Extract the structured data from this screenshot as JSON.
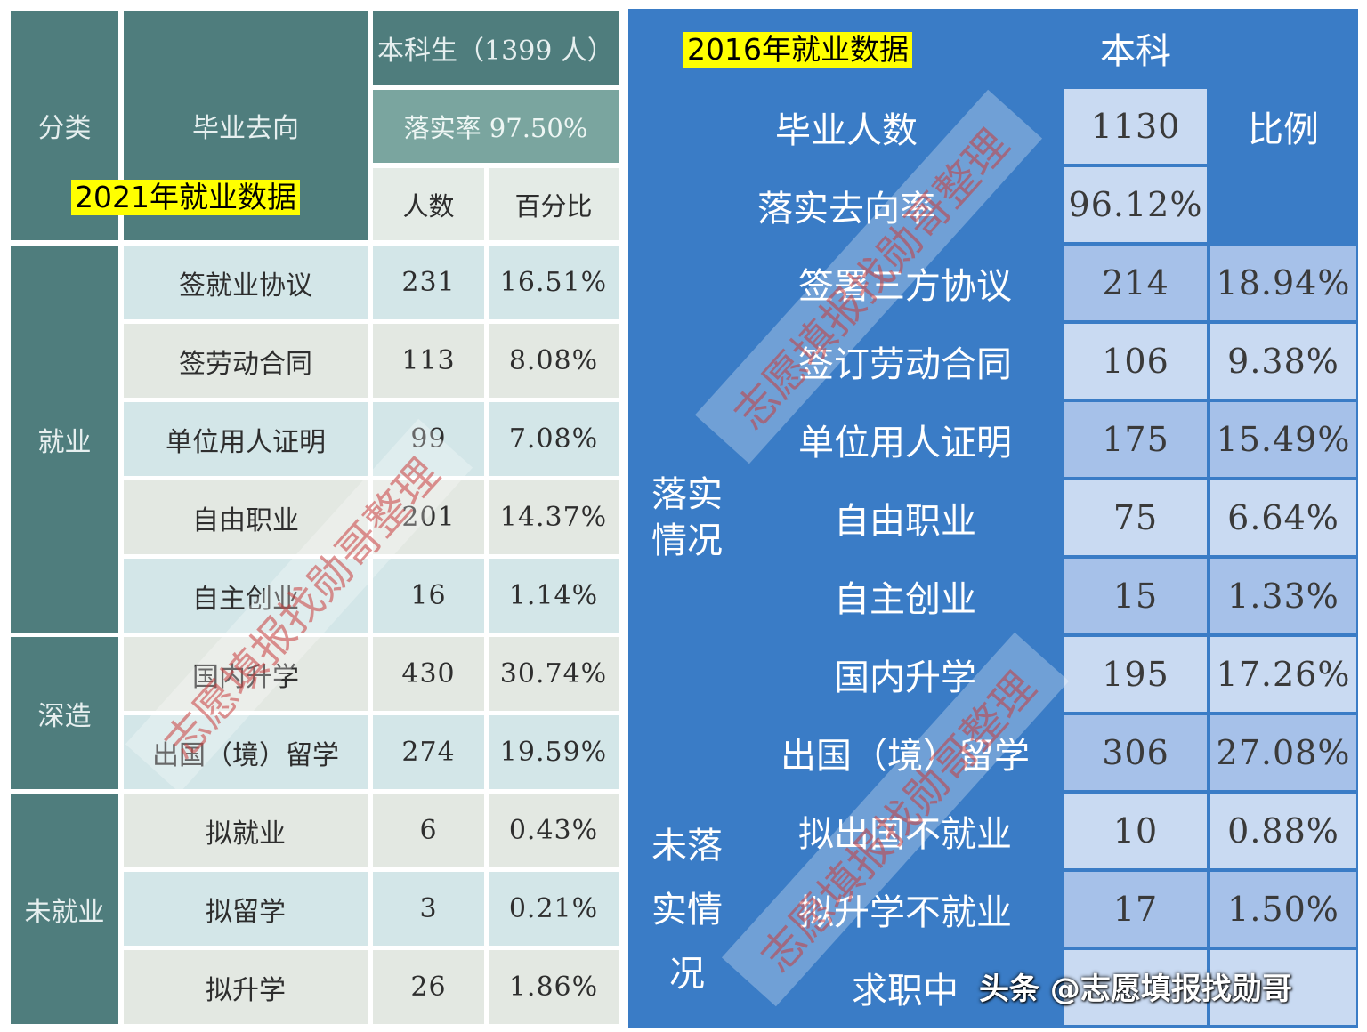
{
  "left": {
    "title_highlight": "2021年就业数据",
    "header": {
      "category": "分类",
      "direction": "毕业去向",
      "group": "本科生（1399 人）",
      "rate": "落实率 97.50%",
      "col_count": "人数",
      "col_pct": "百分比"
    },
    "categories": [
      {
        "name": "就业"
      },
      {
        "name": "深造"
      },
      {
        "name": "未就业"
      }
    ],
    "rows": [
      {
        "label": "签就业协议",
        "count": "231",
        "pct": "16.51%"
      },
      {
        "label": "签劳动合同",
        "count": "113",
        "pct": "8.08%"
      },
      {
        "label": "单位用人证明",
        "count": "99",
        "pct": "7.08%"
      },
      {
        "label": "自由职业",
        "count": "201",
        "pct": "14.37%"
      },
      {
        "label": "自主创业",
        "count": "16",
        "pct": "1.14%"
      },
      {
        "label": "国内升学",
        "count": "430",
        "pct": "30.74%"
      },
      {
        "label": "出国（境）留学",
        "count": "274",
        "pct": "19.59%"
      },
      {
        "label": "拟就业",
        "count": "6",
        "pct": "0.43%"
      },
      {
        "label": "拟留学",
        "count": "3",
        "pct": "0.21%"
      },
      {
        "label": "拟升学",
        "count": "26",
        "pct": "1.86%"
      }
    ]
  },
  "right": {
    "title_highlight": "2016年就业数据",
    "header": {
      "col_undergrad": "本科",
      "col_ratio": "比例",
      "grads_label": "毕业人数",
      "grads_value": "1130",
      "rate_label": "落实去向率",
      "rate_value": "96.12%"
    },
    "groups": [
      {
        "name": "落实\n情况"
      },
      {
        "name": "未落\n实情\n况"
      }
    ],
    "rows": [
      {
        "label": "签署三方协议",
        "count": "214",
        "pct": "18.94%"
      },
      {
        "label": "签订劳动合同",
        "count": "106",
        "pct": "9.38%"
      },
      {
        "label": "单位用人证明",
        "count": "175",
        "pct": "15.49%"
      },
      {
        "label": "自由职业",
        "count": "75",
        "pct": "6.64%"
      },
      {
        "label": "自主创业",
        "count": "15",
        "pct": "1.33%"
      },
      {
        "label": "国内升学",
        "count": "195",
        "pct": "17.26%"
      },
      {
        "label": "出国（境）留学",
        "count": "306",
        "pct": "27.08%"
      },
      {
        "label": "拟出国不就业",
        "count": "10",
        "pct": "0.88%"
      },
      {
        "label": "拟升学不就业",
        "count": "17",
        "pct": "1.50%"
      },
      {
        "label": "求职中",
        "count": "",
        "pct": ""
      }
    ]
  },
  "watermark": "志愿填报找勋哥整理",
  "footer": "头条 @志愿填报找勋哥"
}
